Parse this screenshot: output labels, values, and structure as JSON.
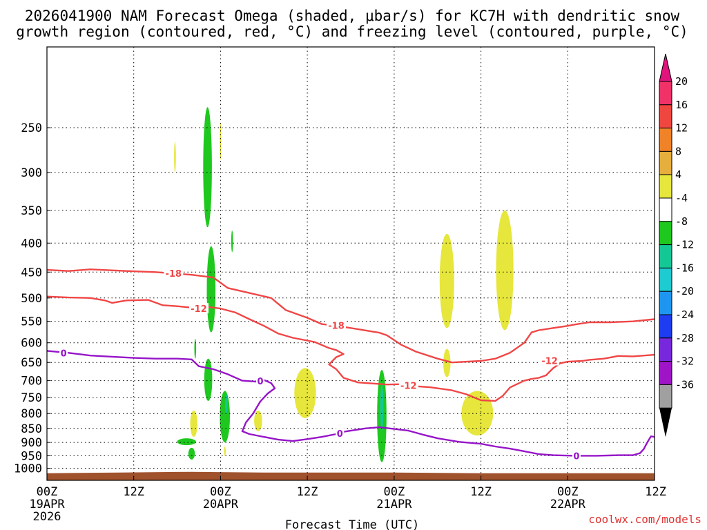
{
  "chart_data": {
    "type": "time-height cross section",
    "title": [
      "2026041900 NAM Forecast Omega (shaded, μbar/s) for KC7H with dendritic snow",
      "growth region (contoured, red, °C) and freezing level (contoured, purple, °C)"
    ],
    "xlabel": "Forecast Time (UTC)",
    "x_ticks": [
      {
        "hour": 0,
        "label": [
          "00Z",
          "19APR",
          "2026"
        ]
      },
      {
        "hour": 12,
        "label": [
          "12Z"
        ]
      },
      {
        "hour": 24,
        "label": [
          "00Z",
          "20APR"
        ]
      },
      {
        "hour": 36,
        "label": [
          "12Z"
        ]
      },
      {
        "hour": 48,
        "label": [
          "00Z",
          "21APR"
        ]
      },
      {
        "hour": 60,
        "label": [
          "12Z"
        ]
      },
      {
        "hour": 72,
        "label": [
          "00Z",
          "22APR"
        ]
      },
      {
        "hour": 84,
        "label": [
          "12Z"
        ]
      }
    ],
    "x_range": [
      0,
      84
    ],
    "y_range": [
      1050,
      180
    ],
    "y_ticks": [
      "250",
      "300",
      "350",
      "400",
      "450",
      "500",
      "550",
      "600",
      "650",
      "700",
      "750",
      "800",
      "850",
      "900",
      "950",
      "1000"
    ],
    "grid": true,
    "colorbar": {
      "labels": [
        "20",
        "16",
        "12",
        "8",
        "4",
        "-4",
        "-8",
        "-12",
        "-16",
        "-20",
        "-24",
        "-28",
        "-32",
        "-36"
      ],
      "colors": [
        "#f03268",
        "#f04640",
        "#f08228",
        "#e6ae3c",
        "#e6e63c",
        "#ffffff",
        "#1ec81e",
        "#14c896",
        "#1ecbd0",
        "#1e96f0",
        "#1e3cf0",
        "#7828dc",
        "#a014c8",
        "#a0a0a0"
      ],
      "top_arrow_color": "#e0147c",
      "bottom_arrow_color": "#000000"
    },
    "red_contours": [
      {
        "label": "-18",
        "points": [
          [
            0,
            446
          ],
          [
            3,
            448
          ],
          [
            6,
            445
          ],
          [
            11,
            448
          ],
          [
            15,
            450
          ],
          [
            20,
            455
          ],
          [
            23,
            460
          ],
          [
            25,
            480
          ],
          [
            28,
            490
          ],
          [
            31,
            500
          ],
          [
            33,
            525
          ],
          [
            36,
            542
          ],
          [
            38,
            556
          ],
          [
            40,
            560
          ],
          [
            42,
            565
          ],
          [
            46,
            576
          ],
          [
            47,
            582
          ],
          [
            49,
            605
          ],
          [
            51,
            622
          ],
          [
            54,
            640
          ],
          [
            56,
            650
          ],
          [
            58,
            648
          ],
          [
            60,
            646
          ],
          [
            62,
            640
          ],
          [
            64,
            625
          ],
          [
            66,
            600
          ],
          [
            67,
            575
          ],
          [
            68,
            570
          ],
          [
            70,
            565
          ],
          [
            72,
            560
          ],
          [
            73,
            557
          ],
          [
            75,
            552
          ],
          [
            78,
            552
          ],
          [
            81,
            550
          ],
          [
            84,
            545
          ]
        ],
        "label_at": [
          [
            17.5,
            452
          ],
          [
            40,
            559
          ]
        ]
      },
      {
        "label": "-12",
        "points": [
          [
            0,
            497
          ],
          [
            3,
            499
          ],
          [
            6,
            500
          ],
          [
            8,
            505
          ],
          [
            9,
            510
          ],
          [
            11,
            505
          ],
          [
            14,
            504
          ],
          [
            16,
            515
          ],
          [
            18,
            517
          ],
          [
            20,
            520
          ],
          [
            22,
            518
          ],
          [
            24,
            522
          ],
          [
            26,
            530
          ],
          [
            28,
            545
          ],
          [
            30,
            560
          ],
          [
            32,
            578
          ],
          [
            34,
            588
          ],
          [
            37,
            598
          ],
          [
            39,
            613
          ],
          [
            40,
            618
          ],
          [
            41,
            628
          ],
          [
            40,
            636
          ],
          [
            39,
            655
          ],
          [
            40,
            668
          ],
          [
            41,
            692
          ],
          [
            43,
            705
          ],
          [
            45,
            708
          ],
          [
            47,
            711
          ],
          [
            49,
            710
          ],
          [
            51,
            716
          ],
          [
            53,
            719
          ],
          [
            56,
            728
          ],
          [
            58,
            740
          ],
          [
            60,
            758
          ],
          [
            62,
            760
          ],
          [
            63,
            745
          ],
          [
            64,
            720
          ],
          [
            66,
            700
          ],
          [
            67,
            695
          ],
          [
            68,
            692
          ],
          [
            69,
            685
          ],
          [
            70,
            665
          ],
          [
            71,
            652
          ],
          [
            72,
            648
          ],
          [
            74,
            646
          ],
          [
            75,
            643
          ],
          [
            77,
            640
          ],
          [
            79,
            633
          ],
          [
            81,
            634
          ],
          [
            84,
            630
          ]
        ],
        "label_at": [
          [
            21,
            522
          ],
          [
            50,
            714
          ],
          [
            69.5,
            645
          ]
        ]
      }
    ],
    "purple_contours": [
      {
        "label": "0",
        "points": [
          [
            0,
            620
          ],
          [
            3,
            625
          ],
          [
            6,
            632
          ],
          [
            9,
            635
          ],
          [
            12,
            638
          ],
          [
            15,
            640
          ],
          [
            18,
            640
          ],
          [
            20,
            642
          ],
          [
            21,
            660
          ],
          [
            23,
            668
          ],
          [
            25,
            682
          ],
          [
            27,
            700
          ],
          [
            29,
            703
          ],
          [
            30,
            698
          ],
          [
            31,
            707
          ],
          [
            31.5,
            722
          ],
          [
            30.5,
            738
          ],
          [
            29.5,
            762
          ],
          [
            28.5,
            800
          ],
          [
            27.5,
            830
          ],
          [
            27,
            860
          ],
          [
            28,
            870
          ],
          [
            30,
            880
          ],
          [
            32,
            890
          ],
          [
            34,
            895
          ],
          [
            36,
            888
          ],
          [
            38,
            880
          ],
          [
            40,
            870
          ],
          [
            41,
            862
          ],
          [
            42,
            858
          ],
          [
            44,
            850
          ],
          [
            46,
            846
          ],
          [
            48,
            852
          ],
          [
            50,
            858
          ],
          [
            52,
            872
          ],
          [
            54,
            885
          ],
          [
            57,
            898
          ],
          [
            60,
            905
          ],
          [
            62,
            915
          ],
          [
            64,
            923
          ],
          [
            66,
            933
          ],
          [
            68,
            944
          ],
          [
            70,
            948
          ],
          [
            73,
            950
          ],
          [
            76,
            950
          ],
          [
            79,
            948
          ],
          [
            81,
            948
          ],
          [
            82,
            940
          ],
          [
            82.5,
            925
          ],
          [
            83,
            900
          ],
          [
            83.5,
            878
          ],
          [
            84,
            880
          ]
        ],
        "label_at": [
          [
            2.3,
            625
          ],
          [
            29.5,
            701
          ],
          [
            40.5,
            868
          ],
          [
            73.2,
            950
          ]
        ]
      }
    ],
    "omega_regions": [
      {
        "value_class": "-4",
        "color": "#1ec81e",
        "center": [
          22.2,
          300
        ],
        "hour_radius": 0.6,
        "p_top": 230,
        "p_bot": 375
      },
      {
        "value_class": "-4",
        "color": "#1ec81e",
        "center": [
          22.7,
          490
        ],
        "hour_radius": 0.6,
        "p_top": 405,
        "p_bot": 575
      },
      {
        "value_class": "-4",
        "color": "#1ec81e",
        "center": [
          22.3,
          680
        ],
        "hour_radius": 0.55,
        "p_top": 640,
        "p_bot": 760
      },
      {
        "value_class": "-4",
        "color": "#1ec81e",
        "center": [
          24.6,
          800
        ],
        "hour_radius": 0.7,
        "p_top": 730,
        "p_bot": 900
      },
      {
        "value_class": "-4",
        "color": "#1ec81e",
        "center": [
          46.3,
          800
        ],
        "hour_radius": 0.65,
        "p_top": 670,
        "p_bot": 975
      },
      {
        "value_class": "-4",
        "color": "#1ec81e",
        "center": [
          20.5,
          610
        ],
        "hour_radius": 0.12,
        "p_top": 590,
        "p_bot": 640
      },
      {
        "value_class": "-4",
        "color": "#1ec81e",
        "center": [
          25.6,
          390
        ],
        "hour_radius": 0.12,
        "p_top": 380,
        "p_bot": 415
      },
      {
        "value_class": "-4",
        "color": "#1ec81e",
        "center": [
          19.3,
          895
        ],
        "hour_radius": 1.3,
        "p_top": 885,
        "p_bot": 910
      },
      {
        "value_class": "-4",
        "color": "#1ec81e",
        "center": [
          20.0,
          940
        ],
        "hour_radius": 0.45,
        "p_top": 920,
        "p_bot": 965
      },
      {
        "value_class": "-8",
        "color": "#14c896",
        "center": [
          24.8,
          770
        ],
        "hour_radius": 0.18,
        "p_top": 740,
        "p_bot": 800
      },
      {
        "value_class": "-8",
        "color": "#14c896",
        "center": [
          46.3,
          780
        ],
        "hour_radius": 0.22,
        "p_top": 710,
        "p_bot": 860
      },
      {
        "value_class": "4",
        "color": "#e6e63c",
        "center": [
          17.7,
          280
        ],
        "hour_radius": 0.12,
        "p_top": 265,
        "p_bot": 300
      },
      {
        "value_class": "4",
        "color": "#e6e63c",
        "center": [
          24.0,
          265
        ],
        "hour_radius": 0.1,
        "p_top": 245,
        "p_bot": 285
      },
      {
        "value_class": "4",
        "color": "#e6e63c",
        "center": [
          20.3,
          830
        ],
        "hour_radius": 0.5,
        "p_top": 790,
        "p_bot": 880
      },
      {
        "value_class": "4",
        "color": "#e6e63c",
        "center": [
          29.2,
          820
        ],
        "hour_radius": 0.55,
        "p_top": 790,
        "p_bot": 860
      },
      {
        "value_class": "4",
        "color": "#e6e63c",
        "center": [
          24.6,
          930
        ],
        "hour_radius": 0.12,
        "p_top": 915,
        "p_bot": 950
      },
      {
        "value_class": "4",
        "color": "#e6e63c",
        "center": [
          35.7,
          755
        ],
        "hour_radius": 1.5,
        "p_top": 665,
        "p_bot": 815
      },
      {
        "value_class": "4",
        "color": "#e6e63c",
        "center": [
          55.3,
          650
        ],
        "hour_radius": 0.5,
        "p_top": 615,
        "p_bot": 690
      },
      {
        "value_class": "4",
        "color": "#e6e63c",
        "center": [
          55.3,
          470
        ],
        "hour_radius": 1.0,
        "p_top": 385,
        "p_bot": 565
      },
      {
        "value_class": "4",
        "color": "#e6e63c",
        "center": [
          63.3,
          430
        ],
        "hour_radius": 1.2,
        "p_top": 350,
        "p_bot": 570
      },
      {
        "value_class": "4",
        "color": "#e6e63c",
        "center": [
          59.5,
          805
        ],
        "hour_radius": 2.2,
        "p_top": 730,
        "p_bot": 875
      }
    ],
    "terrain_color": "#a0522d",
    "credit": "coolwx.com/models"
  }
}
